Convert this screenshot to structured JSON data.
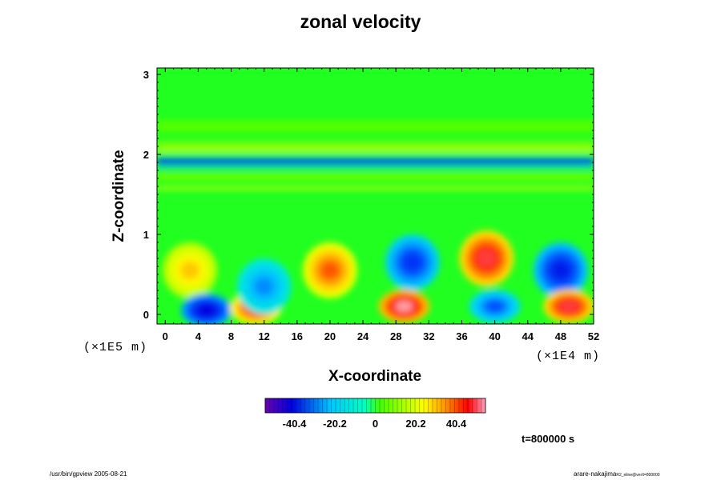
{
  "chart_data": {
    "type": "heatmap",
    "title": "zonal velocity",
    "xlabel": "X-coordinate",
    "ylabel": "Z-coordinate",
    "x_ticks": [
      "0",
      "4",
      "8",
      "12",
      "16",
      "20",
      "24",
      "28",
      "32",
      "36",
      "40",
      "44",
      "48",
      "52"
    ],
    "y_ticks": [
      "0",
      "1",
      "2",
      "3"
    ],
    "x_scale_note": "(×1E4 m)",
    "y_scale_note": "(×1E5 m)",
    "xlim": [
      -1,
      52
    ],
    "ylim": [
      -0.12,
      3.08
    ],
    "colorbar": {
      "tick_labels": [
        "-40.4",
        "-20.2",
        "0",
        "20.2",
        "40.4"
      ],
      "tick_values": [
        -40.4,
        -20.2,
        0,
        20.2,
        40.4
      ],
      "range": [
        -55,
        55
      ]
    },
    "time_label": "t=800000 s",
    "features": [
      {
        "x": 3,
        "z": 0.55,
        "value": 25
      },
      {
        "x": 5,
        "z": 0.05,
        "value": -45
      },
      {
        "x": 11,
        "z": 0.08,
        "value": 40
      },
      {
        "x": 12,
        "z": 0.35,
        "value": -25
      },
      {
        "x": 20,
        "z": 0.55,
        "value": 35
      },
      {
        "x": 29,
        "z": 0.1,
        "value": 50
      },
      {
        "x": 30,
        "z": 0.65,
        "value": -35
      },
      {
        "x": 39,
        "z": 0.7,
        "value": 45
      },
      {
        "x": 40,
        "z": 0.1,
        "value": -30
      },
      {
        "x": 48,
        "z": 0.55,
        "value": -40
      },
      {
        "x": 49,
        "z": 0.1,
        "value": 45
      },
      {
        "x": 26,
        "z": 1.93,
        "value": -40
      },
      {
        "x": 26,
        "z": 2.06,
        "value": 20
      }
    ]
  },
  "footer": {
    "left": "/usr/bin/gpview 2005-08-21",
    "right_main": "arare-nakajima",
    "right_small": "R2_eline@ver/t=800000"
  }
}
